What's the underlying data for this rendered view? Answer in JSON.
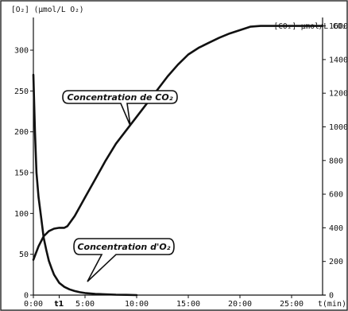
{
  "chart_data": {
    "type": "line",
    "xlabel": "t(min)",
    "ylabel_left": "[O₂] (µmol/L O₂)",
    "ylabel_right": "[CO₂] µmol/L CO₂",
    "x_ticks": [
      {
        "value": 0,
        "label": "0:00"
      },
      {
        "value": 5,
        "label": "5:00"
      },
      {
        "value": 10,
        "label": "10:00"
      },
      {
        "value": 15,
        "label": "15:00"
      },
      {
        "value": 20,
        "label": "20:00"
      },
      {
        "value": 25,
        "label": "25:00"
      }
    ],
    "x_marker": {
      "value": 2.5,
      "label": "t1"
    },
    "xlim": [
      0,
      28
    ],
    "ylim_left": [
      0,
      340
    ],
    "ylim_right": [
      0,
      1650
    ],
    "y_left_ticks": [
      0,
      50,
      100,
      150,
      200,
      250,
      300
    ],
    "y_right_ticks": [
      0,
      200,
      400,
      600,
      800,
      1000,
      1200,
      1400,
      1600
    ],
    "series": [
      {
        "name": "Concentration de CO₂",
        "axis": "right",
        "x": [
          0,
          0.5,
          1,
          1.5,
          2,
          2.5,
          3,
          3.3,
          4,
          5,
          6,
          7,
          8,
          9,
          10,
          11,
          12,
          13,
          14,
          15,
          16,
          17,
          18,
          19,
          20,
          21,
          22,
          23,
          24,
          25,
          26,
          27,
          28
        ],
        "values": [
          210,
          290,
          350,
          380,
          395,
          400,
          400,
          410,
          470,
          580,
          690,
          800,
          900,
          980,
          1060,
          1140,
          1220,
          1300,
          1370,
          1430,
          1470,
          1500,
          1530,
          1555,
          1575,
          1595,
          1600,
          1600,
          1600,
          1600,
          1600,
          1600,
          1600
        ]
      },
      {
        "name": "Concentration d'O₂",
        "axis": "left",
        "x": [
          0,
          0.15,
          0.3,
          0.5,
          0.75,
          1,
          1.25,
          1.5,
          1.75,
          2,
          2.5,
          3,
          3.5,
          4,
          4.5,
          5,
          6,
          7,
          8,
          9,
          10
        ],
        "values": [
          270,
          200,
          150,
          120,
          95,
          70,
          55,
          42,
          33,
          25,
          15,
          10,
          7,
          5,
          3.5,
          2.5,
          1.5,
          1,
          0.5,
          0.3,
          0
        ]
      }
    ],
    "annotations": [
      {
        "text": "Concentration de CO₂",
        "series": 0
      },
      {
        "text": "Concentration d'O₂",
        "series": 1
      }
    ]
  }
}
